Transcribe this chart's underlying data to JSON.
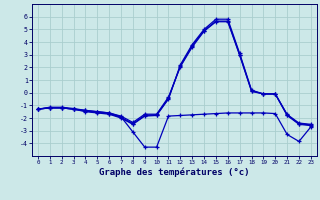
{
  "x": [
    0,
    1,
    2,
    3,
    4,
    5,
    6,
    7,
    8,
    9,
    10,
    11,
    12,
    13,
    14,
    15,
    16,
    17,
    18,
    19,
    20,
    21,
    22,
    23
  ],
  "line1": [
    -1.3,
    -1.2,
    -1.2,
    -1.3,
    -1.5,
    -1.6,
    -1.7,
    -2.0,
    -2.5,
    -1.85,
    -1.8,
    -0.5,
    2.2,
    3.8,
    5.0,
    5.8,
    5.8,
    3.1,
    0.2,
    -0.1,
    -0.1,
    -1.8,
    -2.5,
    -2.6
  ],
  "line2": [
    -1.3,
    -1.2,
    -1.2,
    -1.3,
    -1.4,
    -1.5,
    -1.6,
    -1.9,
    -3.1,
    -4.3,
    -4.3,
    -1.85,
    -1.8,
    -1.75,
    -1.7,
    -1.65,
    -1.6,
    -1.6,
    -1.6,
    -1.6,
    -1.65,
    -3.3,
    -3.85,
    -2.7
  ],
  "line3": [
    -1.3,
    -1.2,
    -1.2,
    -1.3,
    -1.45,
    -1.55,
    -1.65,
    -1.95,
    -2.45,
    -1.8,
    -1.75,
    -0.45,
    2.1,
    3.7,
    4.9,
    5.65,
    5.65,
    3.0,
    0.15,
    -0.1,
    -0.1,
    -1.75,
    -2.45,
    -2.55
  ],
  "line4": [
    -1.3,
    -1.15,
    -1.15,
    -1.25,
    -1.4,
    -1.5,
    -1.6,
    -1.85,
    -2.35,
    -1.7,
    -1.7,
    -0.35,
    2.05,
    3.6,
    4.85,
    5.6,
    5.6,
    2.95,
    0.1,
    -0.1,
    -0.1,
    -1.72,
    -2.4,
    -2.5
  ],
  "bg_color": "#cce8e8",
  "grid_color": "#aacece",
  "line_color": "#0000bb",
  "xlabel": "Graphe des températures (°c)",
  "ylim": [
    -5,
    7
  ],
  "xlim": [
    -0.5,
    23.5
  ],
  "yticks": [
    -4,
    -3,
    -2,
    -1,
    0,
    1,
    2,
    3,
    4,
    5,
    6
  ],
  "xticks": [
    0,
    1,
    2,
    3,
    4,
    5,
    6,
    7,
    8,
    9,
    10,
    11,
    12,
    13,
    14,
    15,
    16,
    17,
    18,
    19,
    20,
    21,
    22,
    23
  ]
}
